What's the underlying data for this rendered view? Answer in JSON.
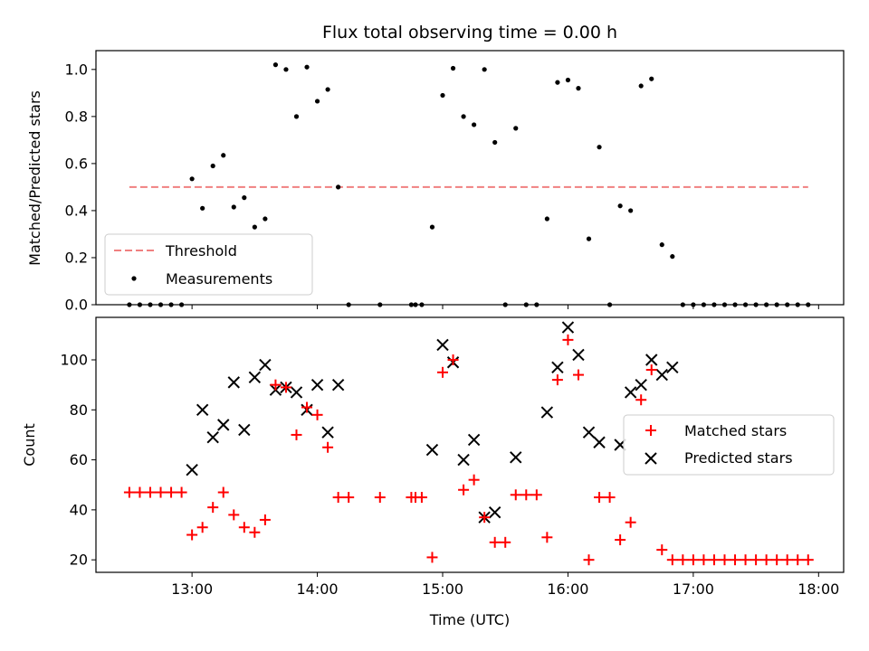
{
  "chart_data": [
    {
      "type": "scatter",
      "title": "Flux total observing time = 0.00 h",
      "xlabel": "",
      "ylabel": "Matched/Predicted stars",
      "xlim": [
        "12:14",
        "18:12"
      ],
      "ylim": [
        0,
        1.08
      ],
      "yticks": [
        "0.0",
        "0.2",
        "0.4",
        "0.6",
        "0.8",
        "1.0"
      ],
      "yticks_values": [
        0,
        0.2,
        0.4,
        0.6,
        0.8,
        1.0
      ],
      "legend": {
        "placement": "lower-left",
        "entries": [
          "Threshold",
          "Measurements"
        ]
      },
      "threshold": {
        "name": "Threshold",
        "value": 0.5,
        "x_start": "12:30",
        "x_end": "17:55",
        "color": "#f08080",
        "style": "dashed"
      },
      "series": [
        {
          "name": "Measurements",
          "color": "#000000",
          "points": [
            [
              "12:30",
              0
            ],
            [
              "12:35",
              0
            ],
            [
              "12:40",
              0
            ],
            [
              "12:45",
              0
            ],
            [
              "12:50",
              0
            ],
            [
              "12:55",
              0
            ],
            [
              "13:00",
              0.535
            ],
            [
              "13:05",
              0.41
            ],
            [
              "13:10",
              0.59
            ],
            [
              "13:15",
              0.635
            ],
            [
              "13:20",
              0.415
            ],
            [
              "13:25",
              0.455
            ],
            [
              "13:30",
              0.33
            ],
            [
              "13:35",
              0.365
            ],
            [
              "13:40",
              1.02
            ],
            [
              "13:45",
              1.0
            ],
            [
              "13:50",
              0.8
            ],
            [
              "13:55",
              1.01
            ],
            [
              "14:00",
              0.865
            ],
            [
              "14:05",
              0.915
            ],
            [
              "14:10",
              0.5
            ],
            [
              "14:15",
              0
            ],
            [
              "14:30",
              0
            ],
            [
              "14:45",
              0
            ],
            [
              "14:47",
              0
            ],
            [
              "14:50",
              0
            ],
            [
              "14:55",
              0.33
            ],
            [
              "15:00",
              0.89
            ],
            [
              "15:05",
              1.005
            ],
            [
              "15:10",
              0.8
            ],
            [
              "15:15",
              0.765
            ],
            [
              "15:20",
              1.0
            ],
            [
              "15:25",
              0.69
            ],
            [
              "15:30",
              0
            ],
            [
              "15:35",
              0.75
            ],
            [
              "15:40",
              0
            ],
            [
              "15:45",
              0
            ],
            [
              "15:50",
              0.365
            ],
            [
              "15:55",
              0.945
            ],
            [
              "16:00",
              0.955
            ],
            [
              "16:05",
              0.92
            ],
            [
              "16:10",
              0.28
            ],
            [
              "16:15",
              0.67
            ],
            [
              "16:20",
              0
            ],
            [
              "16:25",
              0.42
            ],
            [
              "16:30",
              0.4
            ],
            [
              "16:35",
              0.93
            ],
            [
              "16:40",
              0.96
            ],
            [
              "16:45",
              0.255
            ],
            [
              "16:50",
              0.205
            ],
            [
              "16:55",
              0
            ],
            [
              "17:00",
              0
            ],
            [
              "17:05",
              0
            ],
            [
              "17:10",
              0
            ],
            [
              "17:15",
              0
            ],
            [
              "17:20",
              0
            ],
            [
              "17:25",
              0
            ],
            [
              "17:30",
              0
            ],
            [
              "17:35",
              0
            ],
            [
              "17:40",
              0
            ],
            [
              "17:45",
              0
            ],
            [
              "17:50",
              0
            ],
            [
              "17:55",
              0
            ]
          ]
        }
      ]
    },
    {
      "type": "scatter",
      "title": "",
      "xlabel": "Time (UTC)",
      "ylabel": "Count",
      "xlim": [
        "12:14",
        "18:12"
      ],
      "ylim": [
        15,
        117
      ],
      "xticks": [
        "13:00",
        "14:00",
        "15:00",
        "16:00",
        "17:00",
        "18:00"
      ],
      "yticks": [
        "20",
        "40",
        "60",
        "80",
        "100"
      ],
      "yticks_values": [
        20,
        40,
        60,
        80,
        100
      ],
      "legend": {
        "placement": "center-right",
        "entries": [
          "Matched stars",
          "Predicted stars"
        ]
      },
      "series": [
        {
          "name": "Matched stars",
          "marker": "plus",
          "color": "#ff0000",
          "points": [
            [
              "12:30",
              47
            ],
            [
              "12:35",
              47
            ],
            [
              "12:40",
              47
            ],
            [
              "12:45",
              47
            ],
            [
              "12:50",
              47
            ],
            [
              "12:55",
              47
            ],
            [
              "13:00",
              30
            ],
            [
              "13:05",
              33
            ],
            [
              "13:10",
              41
            ],
            [
              "13:15",
              47
            ],
            [
              "13:20",
              38
            ],
            [
              "13:25",
              33
            ],
            [
              "13:30",
              31
            ],
            [
              "13:35",
              36
            ],
            [
              "13:40",
              90
            ],
            [
              "13:45",
              89
            ],
            [
              "13:50",
              70
            ],
            [
              "13:55",
              81
            ],
            [
              "14:00",
              78
            ],
            [
              "14:05",
              65
            ],
            [
              "14:10",
              45
            ],
            [
              "14:15",
              45
            ],
            [
              "14:30",
              45
            ],
            [
              "14:45",
              45
            ],
            [
              "14:47",
              45
            ],
            [
              "14:50",
              45
            ],
            [
              "14:55",
              21
            ],
            [
              "15:00",
              95
            ],
            [
              "15:05",
              100
            ],
            [
              "15:10",
              48
            ],
            [
              "15:15",
              52
            ],
            [
              "15:20",
              37
            ],
            [
              "15:25",
              27
            ],
            [
              "15:30",
              27
            ],
            [
              "15:35",
              46
            ],
            [
              "15:40",
              46
            ],
            [
              "15:45",
              46
            ],
            [
              "15:50",
              29
            ],
            [
              "15:55",
              92
            ],
            [
              "16:00",
              108
            ],
            [
              "16:05",
              94
            ],
            [
              "16:10",
              20
            ],
            [
              "16:15",
              45
            ],
            [
              "16:20",
              45
            ],
            [
              "16:25",
              28
            ],
            [
              "16:30",
              35
            ],
            [
              "16:35",
              84
            ],
            [
              "16:40",
              96
            ],
            [
              "16:45",
              24
            ],
            [
              "16:50",
              20
            ],
            [
              "16:55",
              20
            ],
            [
              "17:00",
              20
            ],
            [
              "17:05",
              20
            ],
            [
              "17:10",
              20
            ],
            [
              "17:15",
              20
            ],
            [
              "17:20",
              20
            ],
            [
              "17:25",
              20
            ],
            [
              "17:30",
              20
            ],
            [
              "17:35",
              20
            ],
            [
              "17:40",
              20
            ],
            [
              "17:45",
              20
            ],
            [
              "17:50",
              20
            ],
            [
              "17:55",
              20
            ]
          ]
        },
        {
          "name": "Predicted stars",
          "marker": "x",
          "color": "#000000",
          "points": [
            [
              "13:00",
              56
            ],
            [
              "13:05",
              80
            ],
            [
              "13:10",
              69
            ],
            [
              "13:15",
              74
            ],
            [
              "13:20",
              91
            ],
            [
              "13:25",
              72
            ],
            [
              "13:30",
              93
            ],
            [
              "13:35",
              98
            ],
            [
              "13:40",
              88
            ],
            [
              "13:45",
              89
            ],
            [
              "13:50",
              87
            ],
            [
              "13:55",
              80
            ],
            [
              "14:00",
              90
            ],
            [
              "14:05",
              71
            ],
            [
              "14:10",
              90
            ],
            [
              "14:55",
              64
            ],
            [
              "15:00",
              106
            ],
            [
              "15:05",
              99
            ],
            [
              "15:10",
              60
            ],
            [
              "15:15",
              68
            ],
            [
              "15:20",
              37
            ],
            [
              "15:25",
              39
            ],
            [
              "15:35",
              61
            ],
            [
              "15:50",
              79
            ],
            [
              "15:55",
              97
            ],
            [
              "16:00",
              113
            ],
            [
              "16:05",
              102
            ],
            [
              "16:10",
              71
            ],
            [
              "16:15",
              67
            ],
            [
              "16:25",
              66
            ],
            [
              "16:30",
              87
            ],
            [
              "16:35",
              90
            ],
            [
              "16:40",
              100
            ],
            [
              "16:45",
              94
            ],
            [
              "16:50",
              97
            ]
          ]
        }
      ]
    }
  ]
}
